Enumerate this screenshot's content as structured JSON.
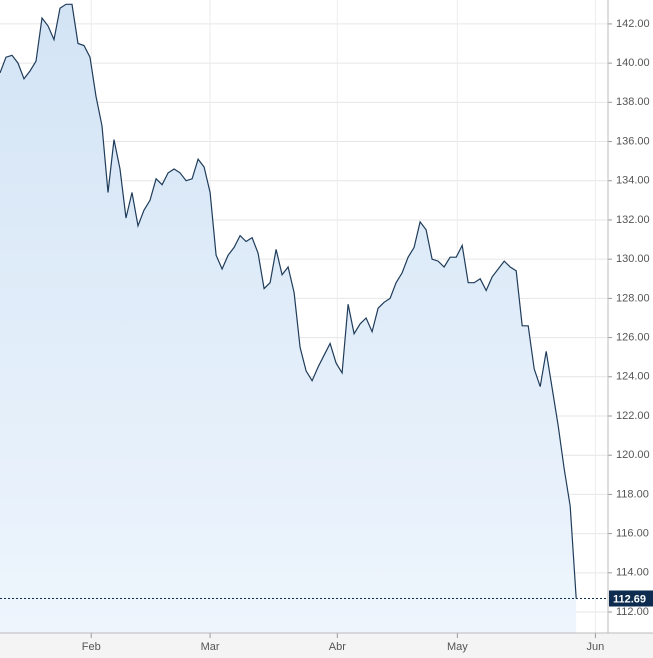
{
  "chart_data": {
    "type": "area",
    "series": [
      {
        "color": "#1f3c5a",
        "values": [
          139.5,
          140.3,
          140.4,
          140.0,
          139.2,
          139.6,
          140.1,
          142.3,
          141.9,
          141.2,
          142.8,
          143.0,
          143.0,
          141.0,
          140.9,
          140.3,
          138.3,
          136.8,
          133.4,
          136.1,
          134.6,
          132.1,
          133.4,
          131.7,
          132.5,
          133.0,
          134.1,
          133.8,
          134.4,
          134.6,
          134.4,
          134.0,
          134.1,
          135.1,
          134.7,
          133.4,
          130.2,
          129.5,
          130.2,
          130.6,
          131.2,
          130.9,
          131.1,
          130.3,
          128.5,
          128.8,
          130.5,
          129.2,
          129.6,
          128.3,
          125.5,
          124.3,
          123.8,
          124.5,
          125.1,
          125.7,
          124.7,
          124.2,
          127.7,
          126.2,
          126.7,
          127.0,
          126.3,
          127.5,
          127.8,
          128.0,
          128.8,
          129.3,
          130.1,
          130.6,
          131.9,
          131.5,
          130.0,
          129.9,
          129.6,
          130.1,
          130.1,
          130.7,
          128.8,
          128.8,
          129.0,
          128.4,
          129.1,
          129.5,
          129.9,
          129.6,
          129.4,
          126.6,
          126.6,
          124.4,
          123.5,
          125.3,
          123.4,
          121.5,
          119.3,
          117.4,
          112.69
        ]
      }
    ],
    "xlim": [
      0,
      101.3
    ],
    "xticks": [
      {
        "value": 15.2,
        "label": "Feb"
      },
      {
        "value": 35,
        "label": "Mar"
      },
      {
        "value": 56.2,
        "label": "Abr"
      },
      {
        "value": 76.2,
        "label": "May"
      },
      {
        "value": 99.2,
        "label": "Jun"
      }
    ],
    "ylim": [
      110.93,
      143.22
    ],
    "yticks": [
      {
        "value": 112,
        "label": "112.00"
      },
      {
        "value": 114,
        "label": "114.00"
      },
      {
        "value": 116,
        "label": "116.00"
      },
      {
        "value": 118,
        "label": "118.00"
      },
      {
        "value": 120,
        "label": "120.00"
      },
      {
        "value": 122,
        "label": "122.00"
      },
      {
        "value": 124,
        "label": "124.00"
      },
      {
        "value": 126,
        "label": "126.00"
      },
      {
        "value": 128,
        "label": "128.00"
      },
      {
        "value": 130,
        "label": "130.00"
      },
      {
        "value": 132,
        "label": "132.00"
      },
      {
        "value": 134,
        "label": "134.00"
      },
      {
        "value": 136,
        "label": "136.00"
      },
      {
        "value": 138,
        "label": "138.00"
      },
      {
        "value": 140,
        "label": "140.00"
      },
      {
        "value": 142,
        "label": "142.00"
      }
    ],
    "grid": true
  }
}
